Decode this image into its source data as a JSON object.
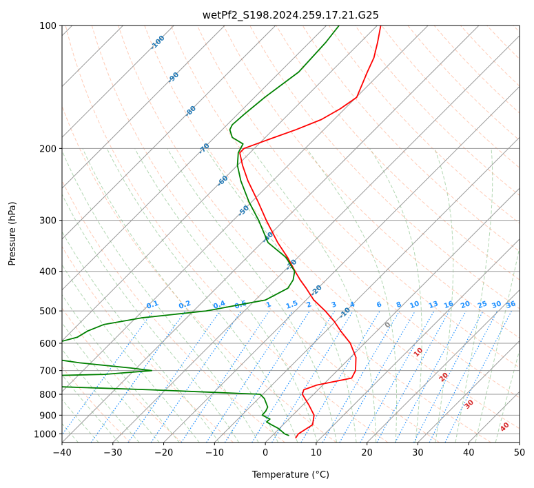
{
  "chart_data": {
    "type": "line",
    "title": "wetPf2_S198.2024.259.17.21.G25",
    "xlabel": "Temperature (°C)",
    "ylabel": "Pressure (hPa)",
    "xlim": [
      -40,
      50
    ],
    "ylim": [
      1050,
      100
    ],
    "y_scale": "log",
    "grid": true,
    "x_ticks": [
      "−40",
      "−30",
      "−20",
      "−10",
      "0",
      "10",
      "20",
      "30",
      "40",
      "50"
    ],
    "y_ticks": [
      "100",
      "200",
      "300",
      "400",
      "500",
      "600",
      "700",
      "800",
      "900",
      "1000"
    ],
    "dry_adiabat_labels": [
      "-100",
      "-90",
      "-80",
      "-70",
      "-60",
      "-50",
      "-40",
      "-30",
      "-20",
      "-10"
    ],
    "mixing_ratio_labels": [
      "0.1",
      "0.2",
      "0.4",
      "0.6",
      "1",
      "1.5",
      "2",
      "3",
      "4",
      "6",
      "8",
      "10",
      "13",
      "16",
      "20",
      "25",
      "30",
      "36"
    ],
    "moist_adiabat_labels": [
      "0",
      "10",
      "20",
      "30",
      "40"
    ],
    "colors": {
      "temperature": "#ff0000",
      "dewpoint": "#008000",
      "dry_adiabats": "#ffa07a",
      "moist_adiabats": "#228b22",
      "mixing_ratio": "#1e90ff",
      "isotherms": "#999999",
      "dry_label": "#1f77b4",
      "moist_label": "#d62728"
    },
    "series": [
      {
        "name": "Temperature",
        "pressure": [
          1025,
          1000,
          950,
          900,
          850,
          800,
          780,
          760,
          730,
          700,
          650,
          600,
          560,
          530,
          500,
          470,
          440,
          420,
          400,
          370,
          340,
          300,
          270,
          240,
          220,
          205,
          200,
          190,
          180,
          170,
          160,
          150,
          140,
          130,
          120,
          110,
          100
        ],
        "values": [
          5.1,
          4.8,
          5.8,
          4.2,
          1.2,
          -2.2,
          -2.8,
          -1.2,
          4.3,
          3.6,
          1.1,
          -2.8,
          -7.1,
          -10.3,
          -14.1,
          -18.5,
          -22.3,
          -25.1,
          -27.8,
          -32.0,
          -36.9,
          -43.5,
          -48.8,
          -54.9,
          -59.0,
          -62.0,
          -62.0,
          -58.9,
          -55.5,
          -52.5,
          -50.9,
          -49.9,
          -51.3,
          -52.8,
          -54.3,
          -56.6,
          -59.3
        ]
      },
      {
        "name": "Dewpoint",
        "pressure": [
          1010,
          1000,
          970,
          950,
          935,
          920,
          900,
          880,
          860,
          820,
          800,
          780,
          750,
          740,
          730,
          715,
          700,
          690,
          670,
          650,
          630,
          620,
          600,
          580,
          560,
          540,
          520,
          500,
          470,
          440,
          420,
          400,
          370,
          340,
          300,
          270,
          240,
          220,
          205,
          195,
          188,
          180,
          175,
          165,
          150,
          130,
          110,
          100
        ],
        "values": [
          3.3,
          2.1,
          -0.2,
          -2.3,
          -3.8,
          -3.7,
          -6.0,
          -6.1,
          -6.5,
          -8.8,
          -10.5,
          -33.0,
          -75.0,
          -90.0,
          -75.0,
          -45.0,
          -36.5,
          -41.0,
          -52.2,
          -60.6,
          -64.6,
          -65.2,
          -61.0,
          -57.7,
          -56.9,
          -55.0,
          -48.9,
          -37.5,
          -28.0,
          -25.9,
          -26.5,
          -27.9,
          -32.3,
          -38.8,
          -45.0,
          -50.6,
          -56.3,
          -60.0,
          -62.3,
          -63.1,
          -66.5,
          -68.5,
          -69.0,
          -68.7,
          -68.0,
          -66.3,
          -66.8,
          -67.5
        ]
      }
    ]
  }
}
